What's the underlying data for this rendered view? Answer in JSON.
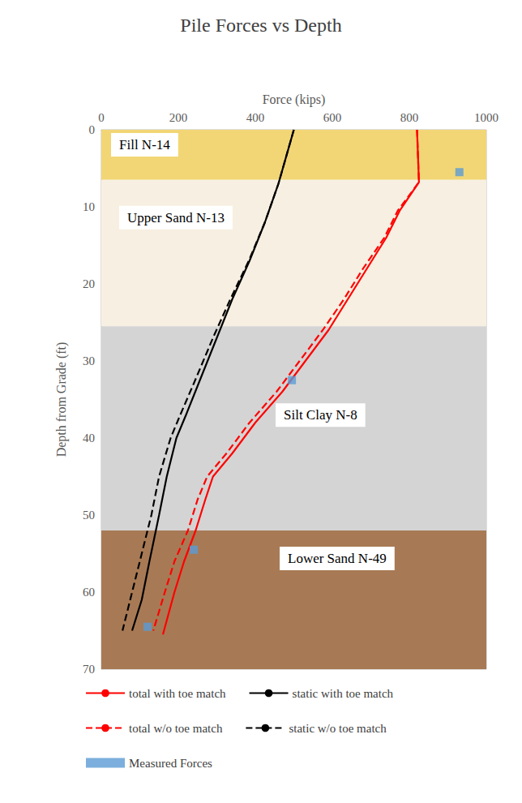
{
  "chart_data": {
    "type": "line",
    "title": "Pile Forces vs Depth",
    "x_label": "Force (kips)",
    "y_label": "Depth from Grade (ft)",
    "xlim": [
      0,
      1000
    ],
    "xticks": [
      0,
      200,
      400,
      600,
      800,
      1000
    ],
    "ylim": [
      0,
      70
    ],
    "yticks": [
      0,
      10,
      20,
      30,
      40,
      50,
      60,
      70
    ],
    "grid": false,
    "legend": "bottom",
    "layers": [
      {
        "name": "Fill N-14",
        "top": 0,
        "bottom": 6.5,
        "color": "#f2d675"
      },
      {
        "name": "Upper Sand N-13",
        "top": 6.5,
        "bottom": 25.5,
        "color": "#f7efe1"
      },
      {
        "name": "Silt Clay N-8",
        "top": 25.5,
        "bottom": 52,
        "color": "#d4d4d4"
      },
      {
        "name": "Lower Sand N-49",
        "top": 52,
        "bottom": 70,
        "color": "#a77a55"
      }
    ],
    "series": [
      {
        "name": "total with toe match",
        "type": "line",
        "color": "#ff0000",
        "line_style": "solid",
        "x": [
          820,
          825,
          775,
          740,
          690,
          640,
          590,
          530,
          470,
          400,
          340,
          290,
          270,
          245,
          215,
          190,
          160
        ],
        "y": [
          0,
          6.8,
          10.5,
          14,
          18,
          22,
          26,
          30,
          34,
          38,
          42,
          45,
          48,
          52,
          56,
          60,
          65.5
        ]
      },
      {
        "name": "static with toe match",
        "type": "line",
        "color": "#000000",
        "line_style": "solid",
        "x": [
          500,
          460,
          425,
          385,
          340,
          300,
          260,
          220,
          195,
          170,
          150,
          125,
          105,
          80
        ],
        "y": [
          0,
          7,
          12,
          17,
          22,
          27,
          32,
          37,
          40,
          45,
          50,
          56,
          61,
          65
        ]
      },
      {
        "name": "total w/o toe match",
        "type": "line",
        "color": "#ff0000",
        "line_style": "dashed",
        "x": [
          820,
          825,
          770,
          735,
          680,
          630,
          575,
          515,
          455,
          385,
          325,
          275,
          250,
          225,
          190,
          165,
          135
        ],
        "y": [
          0,
          6.8,
          10.5,
          14,
          18,
          22,
          26,
          30,
          34,
          38,
          42,
          45,
          48,
          52,
          56,
          60,
          65
        ]
      },
      {
        "name": "static w/o toe match",
        "type": "line",
        "color": "#000000",
        "line_style": "dashed",
        "x": [
          500,
          460,
          425,
          383,
          335,
          290,
          248,
          205,
          180,
          150,
          130,
          105,
          80,
          55
        ],
        "y": [
          0,
          7,
          12,
          17,
          22,
          27,
          32,
          37,
          40,
          45,
          50,
          55,
          60,
          65
        ]
      },
      {
        "name": "Measured Forces",
        "type": "scatter",
        "color": "#5b9bd5",
        "marker": "square",
        "x": [
          930,
          495,
          240,
          120
        ],
        "y": [
          5.5,
          32.5,
          54.5,
          64.5
        ]
      }
    ]
  }
}
